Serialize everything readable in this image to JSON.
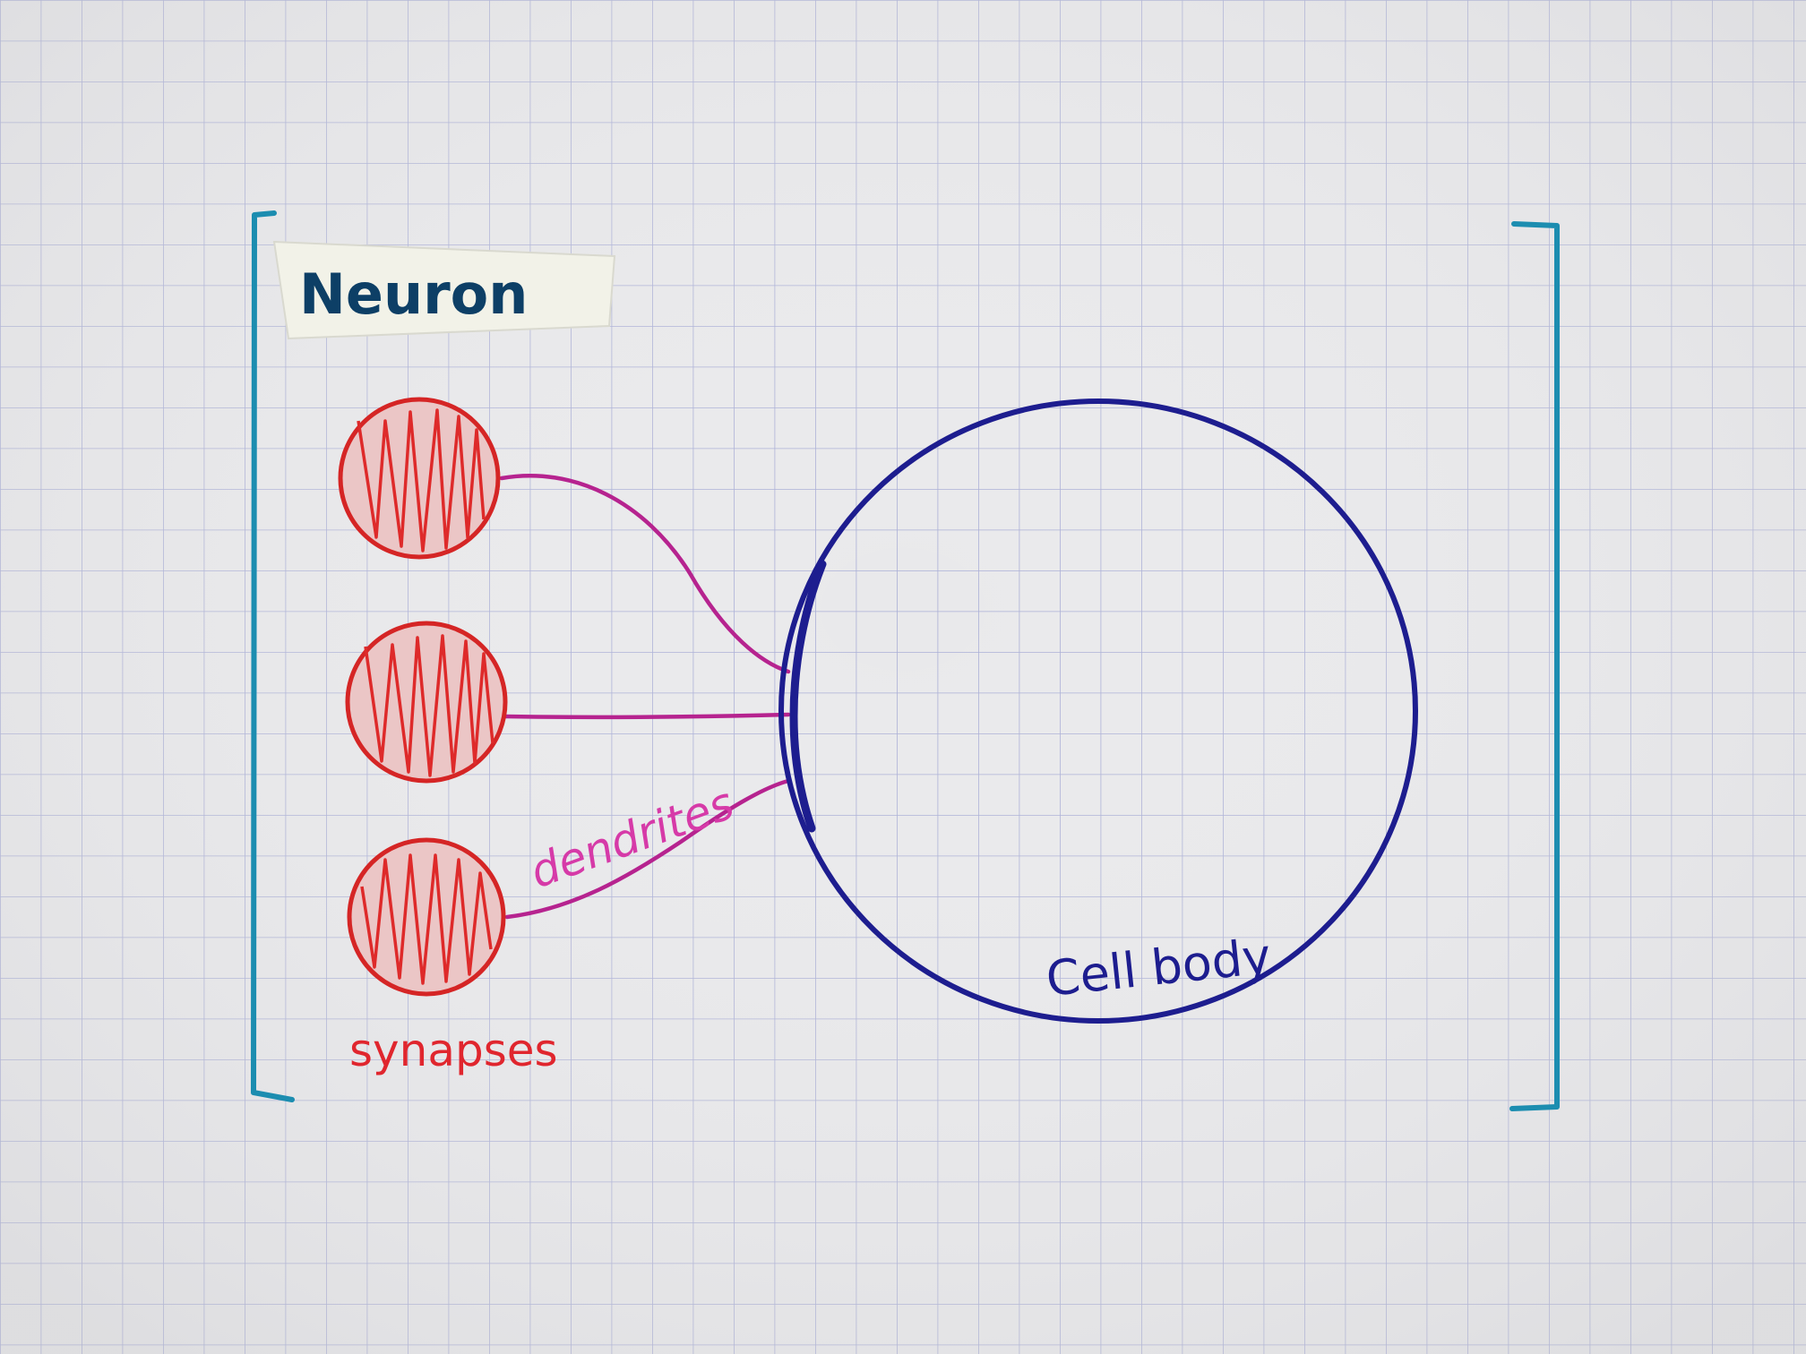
{
  "diagram": {
    "title": "Neuron",
    "labels": {
      "dendrites": "dendrites",
      "synapses": "synapses",
      "cell_body": "Cell body"
    },
    "synapse_count": 3,
    "dendrite_count": 3
  },
  "colors": {
    "paper": "#e9e9eb",
    "grid": "#a9aed6",
    "bracket": "#1c8db0",
    "title_ink": "#0d3f66",
    "tape": "#f2f2e8",
    "synapse": "#de2a2a",
    "dendrite": "#b6238f",
    "dendrites_label": "#d63aa8",
    "synapses_label": "#e0262e",
    "cell_body": "#1d1d8f"
  }
}
